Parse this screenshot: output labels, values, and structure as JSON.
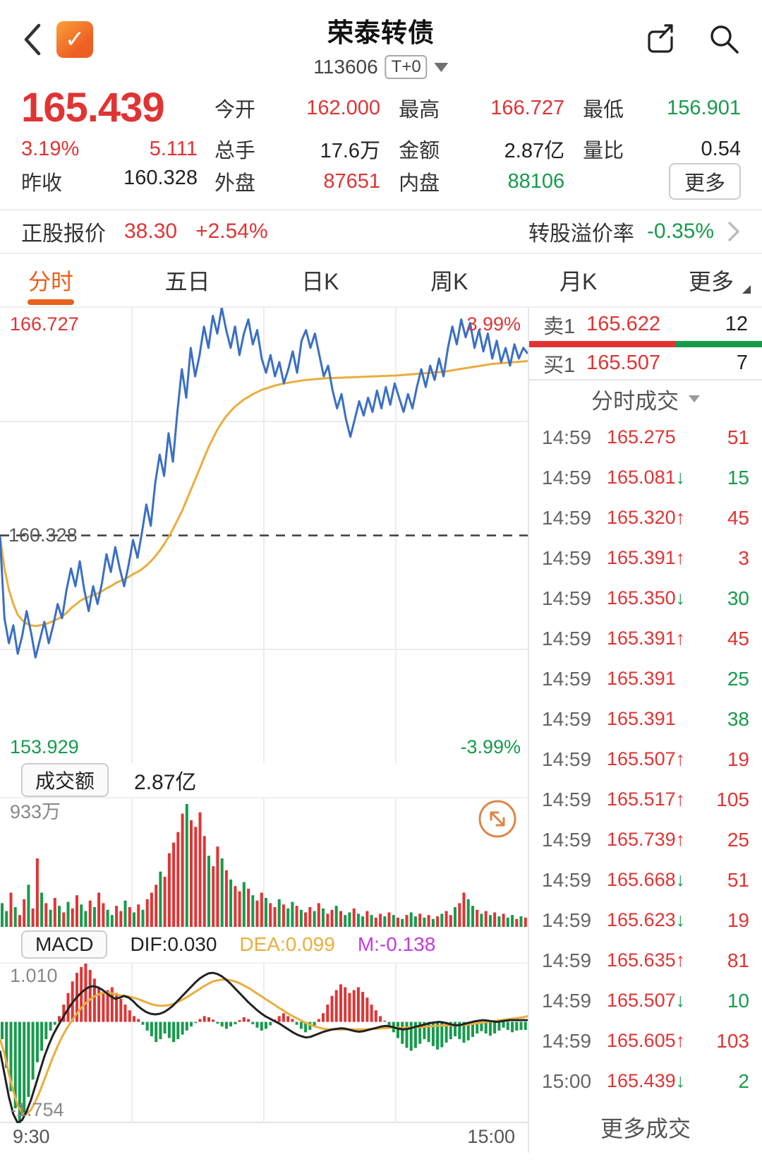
{
  "colors": {
    "red": "#e03434",
    "green": "#169b4c",
    "tab": "#e8611c",
    "blue": "#3b6fc4",
    "avg": "#e9ae3d",
    "magenta": "#c23be0"
  },
  "header": {
    "title": "荣泰转债",
    "code": "113606",
    "badge": "T+0"
  },
  "quote": {
    "price": "165.439",
    "change_pct": "3.19%",
    "change_val": "5.111",
    "prev_label": "昨收",
    "prev_value": "160.328",
    "stats": [
      {
        "label": "今开",
        "value": "162.000",
        "color": "red"
      },
      {
        "label": "最高",
        "value": "166.727",
        "color": "red"
      },
      {
        "label": "最低",
        "value": "156.901",
        "color": "green"
      },
      {
        "label": "总手",
        "value": "17.6万",
        "color": "black"
      },
      {
        "label": "金额",
        "value": "2.87亿",
        "color": "black"
      },
      {
        "label": "量比",
        "value": "0.54",
        "color": "black"
      },
      {
        "label": "外盘",
        "value": "87651",
        "color": "red"
      },
      {
        "label": "内盘",
        "value": "88106",
        "color": "green"
      }
    ],
    "more_button": "更多"
  },
  "underlying": {
    "label": "正股报价",
    "price": "38.30",
    "change": "+2.54%",
    "premium_label": "转股溢价率",
    "premium": "-0.35%"
  },
  "tabs": [
    {
      "label": "分时",
      "active": true
    },
    {
      "label": "五日",
      "active": false
    },
    {
      "label": "日K",
      "active": false
    },
    {
      "label": "周K",
      "active": false
    },
    {
      "label": "月K",
      "active": false
    },
    {
      "label": "更多",
      "active": false,
      "corner": true
    }
  ],
  "order_book": {
    "sell_label": "卖1",
    "sell_price": "165.622",
    "sell_vol": "12",
    "buy_label": "买1",
    "buy_price": "165.507",
    "buy_vol": "7",
    "red_ratio": 63
  },
  "tick_panel": {
    "title": "分时成交",
    "more": "更多成交",
    "rows": [
      {
        "time": "14:59",
        "price": "165.275",
        "dir": "",
        "vol": "51",
        "vc": "red"
      },
      {
        "time": "14:59",
        "price": "165.081",
        "dir": "down",
        "vol": "15",
        "vc": "green"
      },
      {
        "time": "14:59",
        "price": "165.320",
        "dir": "up",
        "vol": "45",
        "vc": "red"
      },
      {
        "time": "14:59",
        "price": "165.391",
        "dir": "up",
        "vol": "3",
        "vc": "red"
      },
      {
        "time": "14:59",
        "price": "165.350",
        "dir": "down",
        "vol": "30",
        "vc": "green"
      },
      {
        "time": "14:59",
        "price": "165.391",
        "dir": "up",
        "vol": "45",
        "vc": "red"
      },
      {
        "time": "14:59",
        "price": "165.391",
        "dir": "",
        "vol": "25",
        "vc": "green"
      },
      {
        "time": "14:59",
        "price": "165.391",
        "dir": "",
        "vol": "38",
        "vc": "green"
      },
      {
        "time": "14:59",
        "price": "165.507",
        "dir": "up",
        "vol": "19",
        "vc": "red"
      },
      {
        "time": "14:59",
        "price": "165.517",
        "dir": "up",
        "vol": "105",
        "vc": "red"
      },
      {
        "time": "14:59",
        "price": "165.739",
        "dir": "up",
        "vol": "25",
        "vc": "red"
      },
      {
        "time": "14:59",
        "price": "165.668",
        "dir": "down",
        "vol": "51",
        "vc": "red"
      },
      {
        "time": "14:59",
        "price": "165.623",
        "dir": "down",
        "vol": "19",
        "vc": "red"
      },
      {
        "time": "14:59",
        "price": "165.635",
        "dir": "up",
        "vol": "81",
        "vc": "red"
      },
      {
        "time": "14:59",
        "price": "165.507",
        "dir": "down",
        "vol": "10",
        "vc": "green"
      },
      {
        "time": "14:59",
        "price": "165.605",
        "dir": "up",
        "vol": "103",
        "vc": "red"
      },
      {
        "time": "15:00",
        "price": "165.439",
        "dir": "down",
        "vol": "2",
        "vc": "green"
      }
    ]
  },
  "chart_data": [
    {
      "id": "timeshare",
      "type": "line",
      "title": "分时",
      "x_axis": [
        "9:30",
        "15:00"
      ],
      "ylim": [
        153.929,
        166.727
      ],
      "prev_close": 160.328,
      "labels": {
        "high": "166.727",
        "high_pct": "3.99%",
        "low": "153.929",
        "low_pct": "-3.99%",
        "prev": "160.328"
      },
      "series": [
        {
          "name": "price",
          "values": [
            160.3,
            158.0,
            157.3,
            157.8,
            157.0,
            157.5,
            158.2,
            157.6,
            156.9,
            157.4,
            157.9,
            157.3,
            157.8,
            158.4,
            158.0,
            158.8,
            159.4,
            158.9,
            159.6,
            158.8,
            158.2,
            158.9,
            158.4,
            159.0,
            159.8,
            159.3,
            160.0,
            159.4,
            158.9,
            159.5,
            160.2,
            159.7,
            160.4,
            161.2,
            160.6,
            161.8,
            162.6,
            162.0,
            163.2,
            162.4,
            163.8,
            165.0,
            164.2,
            165.6,
            164.8,
            165.4,
            166.2,
            165.6,
            166.5,
            166.0,
            166.727,
            166.1,
            165.6,
            166.2,
            165.4,
            166.0,
            166.4,
            165.7,
            166.1,
            165.3,
            164.9,
            165.4,
            164.8,
            165.2,
            164.6,
            165.0,
            165.5,
            164.9,
            165.8,
            166.1,
            165.6,
            166.0,
            165.4,
            164.8,
            165.1,
            164.4,
            163.9,
            164.3,
            163.6,
            163.1,
            163.6,
            164.1,
            163.7,
            164.2,
            163.8,
            164.4,
            163.9,
            164.5,
            164.0,
            164.6,
            164.2,
            163.8,
            164.3,
            163.9,
            164.5,
            165.0,
            164.5,
            165.1,
            164.7,
            165.3,
            164.8,
            165.6,
            166.2,
            165.7,
            166.4,
            165.9,
            166.3,
            165.6,
            166.1,
            165.5,
            166.0,
            165.3,
            165.8,
            165.2,
            165.6,
            165.1,
            165.7,
            165.3,
            165.6,
            165.439
          ]
        },
        {
          "name": "average",
          "values": [
            160.3,
            159.4,
            158.8,
            158.4,
            158.1,
            157.95,
            157.85,
            157.8,
            157.78,
            157.8,
            157.83,
            157.87,
            157.92,
            157.98,
            158.05,
            158.15,
            158.28,
            158.38,
            158.48,
            158.55,
            158.6,
            158.65,
            158.7,
            158.76,
            158.84,
            158.9,
            158.98,
            159.04,
            159.1,
            159.16,
            159.24,
            159.3,
            159.38,
            159.48,
            159.6,
            159.74,
            159.9,
            160.08,
            160.28,
            160.5,
            160.75,
            161.0,
            161.3,
            161.6,
            161.9,
            162.2,
            162.5,
            162.8,
            163.05,
            163.3,
            163.5,
            163.68,
            163.82,
            163.95,
            164.05,
            164.15,
            164.22,
            164.3,
            164.36,
            164.42,
            164.46,
            164.5,
            164.54,
            164.57,
            164.6,
            164.62,
            164.64,
            164.66,
            164.68,
            164.7,
            164.71,
            164.72,
            164.73,
            164.74,
            164.75,
            164.75,
            164.76,
            164.76,
            164.77,
            164.77,
            164.78,
            164.78,
            164.79,
            164.79,
            164.8,
            164.8,
            164.81,
            164.81,
            164.82,
            164.82,
            164.83,
            164.84,
            164.85,
            164.86,
            164.87,
            164.88,
            164.89,
            164.9,
            164.91,
            164.92,
            164.93,
            164.95,
            164.97,
            164.99,
            165.01,
            165.03,
            165.05,
            165.07,
            165.09,
            165.11,
            165.13,
            165.15,
            165.16,
            165.17,
            165.18,
            165.19,
            165.2,
            165.21,
            165.22,
            165.23
          ]
        }
      ]
    },
    {
      "id": "volume",
      "type": "bar",
      "label": "成交额",
      "value": "2.87亿",
      "max_label": "933万",
      "max_value": 933,
      "values": [
        180,
        120,
        260,
        150,
        90,
        210,
        320,
        140,
        520,
        260,
        180,
        130,
        220,
        160,
        110,
        190,
        140,
        240,
        170,
        120,
        200,
        150,
        260,
        180,
        130,
        90,
        160,
        120,
        200,
        150,
        110,
        170,
        130,
        210,
        260,
        320,
        420,
        380,
        560,
        640,
        720,
        860,
        933,
        810,
        760,
        870,
        690,
        540,
        460,
        610,
        520,
        430,
        360,
        310,
        270,
        340,
        290,
        240,
        200,
        260,
        220,
        180,
        150,
        210,
        170,
        140,
        190,
        160,
        130,
        110,
        150,
        120,
        180,
        140,
        100,
        130,
        160,
        120,
        90,
        110,
        140,
        100,
        80,
        120,
        90,
        70,
        100,
        80,
        110,
        90,
        70,
        60,
        90,
        110,
        80,
        100,
        70,
        90,
        60,
        80,
        100,
        120,
        90,
        150,
        180,
        260,
        210,
        160,
        130,
        100,
        120,
        90,
        110,
        80,
        100,
        70,
        90,
        60,
        80,
        70
      ],
      "bar_colors": "ggrgrrgrrgrgrgrgrrggrgrrggrrgrgrgrrrgrrrrrgrrrrgrrgrgrrgrgrrgrrgrggrgrrgrgrrgrggrggrgrrgrgrgrggrgrgrgrrgrrggrgrgrgrggrgr"
    },
    {
      "id": "macd",
      "type": "macd",
      "labels": {
        "box": "MACD",
        "dif": "DIF:0.030",
        "dea": "DEA:0.099",
        "m": "M:-0.138",
        "max": "1.010",
        "min": "-1.754"
      },
      "ylim": [
        -1.754,
        1.01
      ],
      "hist": [
        -0.3,
        -0.8,
        -1.2,
        -1.5,
        -1.754,
        -1.6,
        -1.3,
        -1.0,
        -0.7,
        -0.5,
        -0.3,
        -0.15,
        -0.05,
        0.1,
        0.3,
        0.5,
        0.7,
        0.85,
        0.95,
        1.01,
        0.9,
        0.75,
        0.6,
        0.5,
        0.55,
        0.6,
        0.5,
        0.4,
        0.3,
        0.2,
        0.1,
        0.05,
        -0.05,
        -0.15,
        -0.25,
        -0.35,
        -0.3,
        -0.2,
        -0.28,
        -0.35,
        -0.3,
        -0.22,
        -0.15,
        -0.08,
        -0.02,
        0.05,
        0.1,
        0.08,
        0.04,
        -0.03,
        -0.08,
        -0.12,
        -0.08,
        -0.04,
        0.03,
        0.08,
        0.05,
        -0.04,
        -0.1,
        -0.15,
        -0.12,
        -0.06,
        0.04,
        0.1,
        0.15,
        0.1,
        0.05,
        -0.05,
        -0.12,
        -0.18,
        -0.14,
        -0.08,
        0.05,
        0.15,
        0.3,
        0.45,
        0.55,
        0.65,
        0.6,
        0.5,
        0.55,
        0.6,
        0.52,
        0.42,
        0.3,
        0.2,
        0.1,
        0.02,
        -0.08,
        -0.18,
        -0.28,
        -0.38,
        -0.45,
        -0.5,
        -0.45,
        -0.38,
        -0.3,
        -0.35,
        -0.42,
        -0.48,
        -0.44,
        -0.36,
        -0.3,
        -0.25,
        -0.3,
        -0.36,
        -0.32,
        -0.26,
        -0.2,
        -0.16,
        -0.2,
        -0.24,
        -0.2,
        -0.15,
        -0.1,
        -0.14,
        -0.18,
        -0.15,
        -0.14,
        -0.138
      ],
      "dif": [
        -0.5,
        -0.9,
        -1.3,
        -1.6,
        -1.75,
        -1.7,
        -1.55,
        -1.35,
        -1.1,
        -0.85,
        -0.6,
        -0.4,
        -0.22,
        -0.08,
        0.05,
        0.18,
        0.3,
        0.4,
        0.48,
        0.55,
        0.6,
        0.62,
        0.6,
        0.56,
        0.5,
        0.44,
        0.4,
        0.42,
        0.45,
        0.42,
        0.36,
        0.28,
        0.22,
        0.17,
        0.14,
        0.13,
        0.14,
        0.17,
        0.22,
        0.28,
        0.36,
        0.44,
        0.52,
        0.6,
        0.68,
        0.75,
        0.8,
        0.84,
        0.85,
        0.83,
        0.79,
        0.73,
        0.66,
        0.58,
        0.5,
        0.42,
        0.34,
        0.27,
        0.2,
        0.14,
        0.09,
        0.05,
        0.01,
        -0.03,
        -0.08,
        -0.13,
        -0.18,
        -0.22,
        -0.25,
        -0.27,
        -0.26,
        -0.23,
        -0.2,
        -0.17,
        -0.15,
        -0.13,
        -0.12,
        -0.11,
        -0.12,
        -0.14,
        -0.16,
        -0.17,
        -0.16,
        -0.14,
        -0.12,
        -0.1,
        -0.08,
        -0.07,
        -0.08,
        -0.1,
        -0.12,
        -0.13,
        -0.12,
        -0.1,
        -0.08,
        -0.06,
        -0.04,
        -0.02,
        -0.01,
        0.0,
        -0.01,
        -0.03,
        -0.05,
        -0.06,
        -0.05,
        -0.03,
        -0.01,
        0.01,
        0.02,
        0.03,
        0.02,
        0.01,
        0.0,
        0.01,
        0.02,
        0.03,
        0.03,
        0.03,
        0.03,
        0.03
      ],
      "dea": [
        -0.3,
        -0.55,
        -0.9,
        -1.2,
        -1.45,
        -1.58,
        -1.6,
        -1.52,
        -1.38,
        -1.2,
        -1.0,
        -0.8,
        -0.6,
        -0.42,
        -0.26,
        -0.12,
        0.0,
        0.11,
        0.21,
        0.3,
        0.37,
        0.43,
        0.47,
        0.5,
        0.51,
        0.5,
        0.48,
        0.46,
        0.45,
        0.44,
        0.42,
        0.4,
        0.37,
        0.34,
        0.31,
        0.29,
        0.28,
        0.28,
        0.29,
        0.31,
        0.34,
        0.38,
        0.42,
        0.47,
        0.52,
        0.57,
        0.62,
        0.66,
        0.7,
        0.72,
        0.73,
        0.73,
        0.72,
        0.7,
        0.67,
        0.63,
        0.59,
        0.54,
        0.49,
        0.44,
        0.39,
        0.34,
        0.29,
        0.24,
        0.19,
        0.14,
        0.1,
        0.06,
        0.02,
        -0.02,
        -0.05,
        -0.08,
        -0.1,
        -0.12,
        -0.13,
        -0.13,
        -0.13,
        -0.13,
        -0.13,
        -0.13,
        -0.13,
        -0.13,
        -0.13,
        -0.13,
        -0.12,
        -0.12,
        -0.11,
        -0.11,
        -0.1,
        -0.1,
        -0.1,
        -0.1,
        -0.1,
        -0.1,
        -0.09,
        -0.09,
        -0.08,
        -0.08,
        -0.07,
        -0.07,
        -0.06,
        -0.06,
        -0.06,
        -0.06,
        -0.05,
        -0.05,
        -0.04,
        -0.03,
        -0.02,
        -0.01,
        0.0,
        0.01,
        0.02,
        0.03,
        0.04,
        0.05,
        0.06,
        0.07,
        0.08,
        0.099
      ]
    }
  ]
}
